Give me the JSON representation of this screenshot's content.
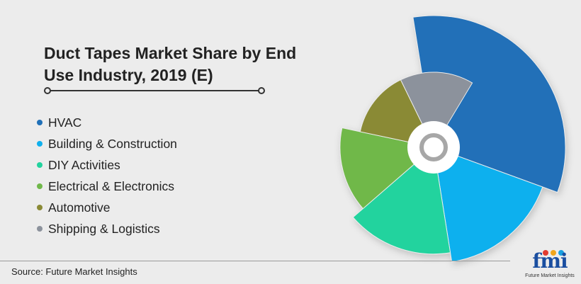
{
  "chart_data": {
    "type": "pie",
    "variant": "polar-area-donut",
    "title": "Duct Tapes Market Share by End Use Industry, 2019 (E)",
    "categories": [
      "HVAC",
      "Building & Construction",
      "DIY Activities",
      "Electrical & Electronics",
      "Automotive",
      "Shipping & Logistics"
    ],
    "colors": [
      "#2070b8",
      "#0fb0ee",
      "#22d39e",
      "#70b84a",
      "#8a8a35",
      "#8c929c"
    ],
    "start_angle_deg": -99,
    "slices": [
      {
        "name": "HVAC",
        "angle_deg": 119,
        "radius_ratio": 1.0
      },
      {
        "name": "Building & Construction",
        "angle_deg": 61,
        "radius_ratio": 0.88
      },
      {
        "name": "DIY Activities",
        "angle_deg": 58,
        "radius_ratio": 0.81
      },
      {
        "name": "Electrical & Electronics",
        "angle_deg": 53,
        "radius_ratio": 0.71
      },
      {
        "name": "Automotive",
        "angle_deg": 52,
        "radius_ratio": 0.57
      },
      {
        "name": "Shipping & Logistics",
        "angle_deg": 57,
        "radius_ratio": 0.57
      }
    ]
  },
  "source": "Source: Future Market Insights",
  "logo": {
    "text": "fmi",
    "tagline": "Future Market Insights",
    "dot_colors": [
      "#e33b2f",
      "#f2a51a",
      "#1aa0e0"
    ]
  }
}
